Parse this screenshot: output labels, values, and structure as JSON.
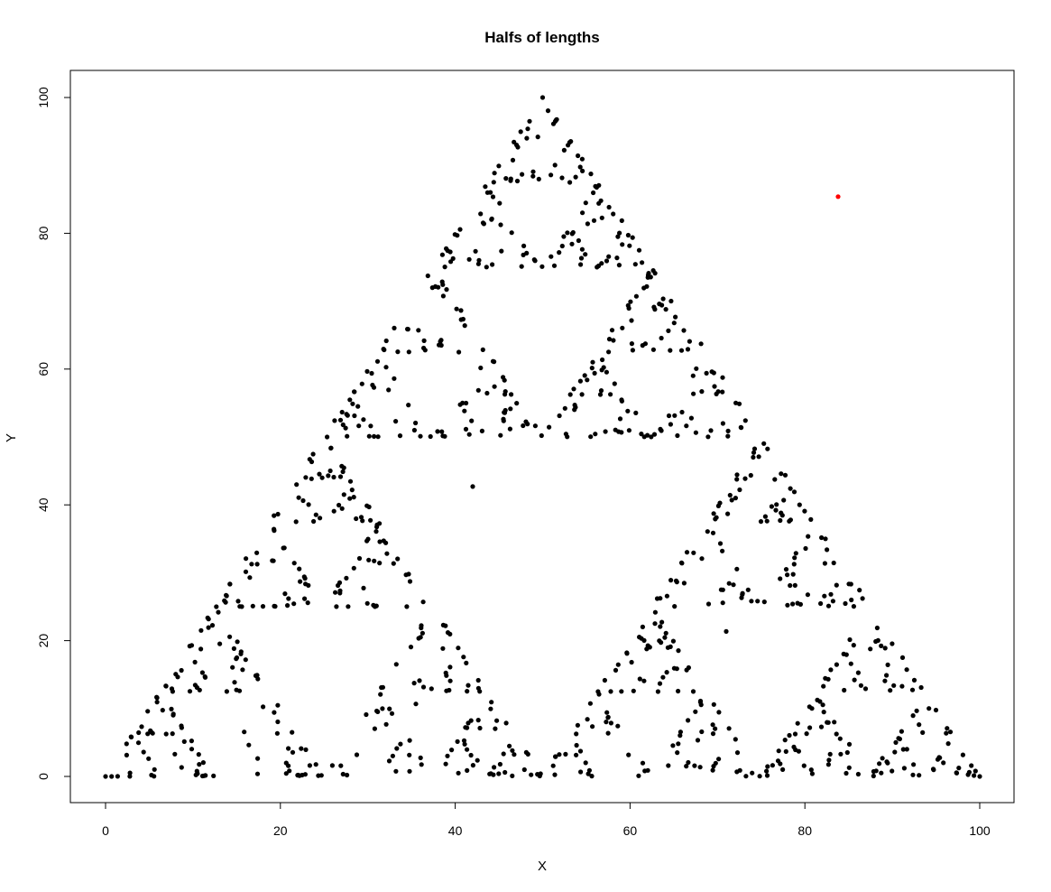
{
  "chart_data": {
    "type": "scatter",
    "title": "Halfs of lengths",
    "xlabel": "X",
    "ylabel": "Y",
    "xlim": [
      0,
      100
    ],
    "ylim": [
      0,
      100
    ],
    "xticks": [
      0,
      20,
      40,
      60,
      80,
      100
    ],
    "yticks": [
      0,
      20,
      40,
      60,
      80,
      100
    ],
    "grid": false,
    "vertices": [
      [
        0,
        0
      ],
      [
        100,
        0
      ],
      [
        50,
        100
      ]
    ],
    "start_point": {
      "x": 42,
      "y": 42.7
    },
    "highlight_point": {
      "x": 83.8,
      "y": 85.4,
      "color": "#ff0000"
    },
    "point_color": "#000000",
    "n_points": 1000
  }
}
